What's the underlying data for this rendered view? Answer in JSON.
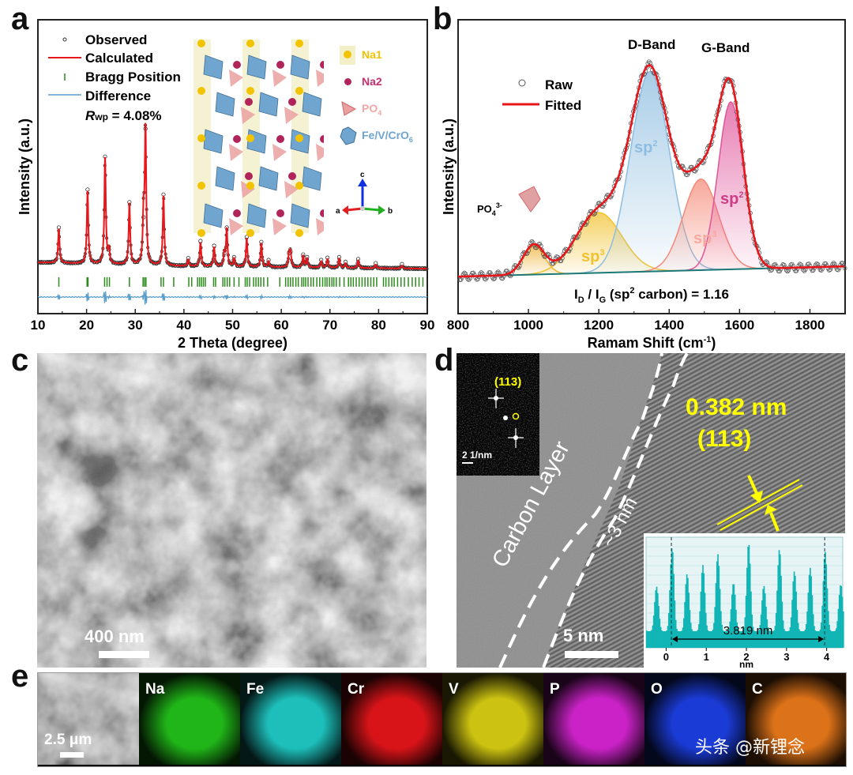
{
  "panels": {
    "a": "a",
    "b": "b",
    "c": "c",
    "d": "d",
    "e": "e"
  },
  "chart_data": [
    {
      "panel": "a",
      "type": "line",
      "title": "",
      "xlabel": "2 Theta (degree)",
      "ylabel": "Intensity (a.u.)",
      "xlim": [
        10,
        90
      ],
      "ylim": [
        0,
        155
      ],
      "xticks": [
        10,
        20,
        30,
        40,
        50,
        60,
        70,
        80,
        90
      ],
      "grid": false,
      "legend": {
        "placement": "top-left",
        "entries": [
          "Observed",
          "Calculated",
          "Bragg Position",
          "Difference"
        ]
      },
      "annotation_rwp": {
        "label": "R",
        "subscript": "wp",
        "value": " = 4.08%"
      },
      "baseline": {
        "start": 25.8,
        "end": 23.7
      },
      "peaks": [
        {
          "x": 14.3,
          "y": 44.6
        },
        {
          "x": 20.2,
          "y": 64.6
        },
        {
          "x": 23.8,
          "y": 82.0
        },
        {
          "x": 24.6,
          "y": 33.0
        },
        {
          "x": 28.8,
          "y": 58.0
        },
        {
          "x": 31.7,
          "y": 50.0
        },
        {
          "x": 32.1,
          "y": 96.7
        },
        {
          "x": 35.8,
          "y": 62.0
        },
        {
          "x": 40.9,
          "y": 28.5
        },
        {
          "x": 43.4,
          "y": 37.5
        },
        {
          "x": 46.2,
          "y": 35.0
        },
        {
          "x": 48.3,
          "y": 31.0
        },
        {
          "x": 48.8,
          "y": 44.6
        },
        {
          "x": 50.3,
          "y": 29.0
        },
        {
          "x": 52.9,
          "y": 39.6
        },
        {
          "x": 55.9,
          "y": 37.0
        },
        {
          "x": 57.4,
          "y": 27.5
        },
        {
          "x": 61.6,
          "y": 31.0
        },
        {
          "x": 61.9,
          "y": 32.0
        },
        {
          "x": 64.5,
          "y": 30.4
        },
        {
          "x": 65.3,
          "y": 29.0
        },
        {
          "x": 68.2,
          "y": 27.5
        },
        {
          "x": 69.5,
          "y": 28.7
        },
        {
          "x": 71.9,
          "y": 29.0
        },
        {
          "x": 73.2,
          "y": 26.5
        },
        {
          "x": 75.8,
          "y": 28.0
        },
        {
          "x": 79.4,
          "y": 25.8
        },
        {
          "x": 84.8,
          "y": 25.3
        }
      ],
      "bragg_level": 16.7,
      "bragg_positions": [
        14.3,
        20.1,
        20.3,
        23.7,
        24.2,
        24.7,
        28.8,
        31.6,
        31.9,
        32.2,
        35.3,
        35.8,
        37.9,
        41.0,
        41.6,
        42.8,
        43.2,
        43.6,
        44.0,
        44.4,
        46.1,
        46.5,
        48.0,
        48.4,
        48.9,
        49.4,
        50.3,
        51.3,
        52.6,
        53.0,
        53.5,
        54.3,
        54.8,
        55.3,
        55.8,
        56.4,
        57.2,
        59.7,
        60.9,
        61.4,
        61.9,
        62.4,
        63.0,
        63.5,
        64.2,
        64.6,
        65.0,
        65.5,
        66.1,
        66.6,
        67.3,
        67.9,
        68.5,
        69.0,
        69.4,
        69.9,
        70.4,
        70.8,
        71.3,
        72.0,
        72.9,
        73.8,
        74.3,
        74.8,
        75.4,
        76.0,
        76.6,
        77.2,
        77.8,
        78.4,
        79.0,
        79.6,
        81.0,
        81.5,
        82.1,
        82.7,
        83.2,
        83.9,
        84.6,
        85.3,
        86.1,
        86.9,
        87.6,
        88.3,
        89.1
      ],
      "difference_level": 8.75,
      "structure_legend": [
        {
          "label": "Na1",
          "color": "#f2c300"
        },
        {
          "label": "Na2",
          "color": "#b0245a"
        },
        {
          "label": "PO",
          "sub": "4",
          "color": "#f1a7a7"
        },
        {
          "label": "Fe/V/CrO",
          "sub": "6",
          "color": "#6fa5cf"
        }
      ],
      "axes_labels": {
        "a": "a",
        "b": "b",
        "c": "c"
      }
    },
    {
      "panel": "b",
      "type": "area",
      "title": "",
      "xlabel": "Ramam Shift (cm",
      "xlabel_sup": "-1",
      "xlabel_end": ")",
      "ylabel": "Intensity (a.u.)",
      "xlim": [
        800,
        1900
      ],
      "ylim": [
        0,
        1
      ],
      "xticks": [
        800,
        1000,
        1200,
        1400,
        1600,
        1800
      ],
      "grid": false,
      "legend": {
        "placement": "top-left",
        "entries": [
          "Raw",
          "Fitted"
        ]
      },
      "baseline": {
        "start": 0.126,
        "end": 0.161
      },
      "components": [
        {
          "name": "PO4",
          "center": 1015,
          "amplitude": 0.1,
          "sigma": 30,
          "color": "#f0b030"
        },
        {
          "name": "sp3",
          "center": 1200,
          "amplitude": 0.205,
          "sigma": 65,
          "color": "#f2c22e"
        },
        {
          "name": "sp2",
          "center": 1345,
          "amplitude": 0.68,
          "sigma": 55,
          "color": "#8dbde0"
        },
        {
          "name": "sp3",
          "center": 1490,
          "amplitude": 0.31,
          "sigma": 50,
          "color": "#f58a78"
        },
        {
          "name": "sp2",
          "center": 1575,
          "amplitude": 0.57,
          "sigma": 36,
          "color": "#e0559a"
        }
      ],
      "labels": {
        "d_band": "D-Band",
        "g_band": "G-Band",
        "po4": "PO",
        "po4_sub": "4",
        "po4_sup": "3-",
        "sp2": "sp",
        "sp3": "sp",
        "sup2": "2",
        "sup3": "3",
        "ratio_pre": "I",
        "ratio_d": "D",
        "ratio_mid": " / I",
        "ratio_g": "G",
        "ratio_text": " (sp",
        "ratio_sup": "2",
        "ratio_end": " carbon) = 1.16"
      }
    },
    {
      "panel": "d-inset",
      "type": "bar",
      "xlabel": "nm",
      "xlim": [
        -0.5,
        4.4
      ],
      "xticks": [
        0,
        1,
        2,
        3,
        4
      ],
      "measurement": "3.819 nm",
      "marker_range": [
        0.13,
        3.95
      ]
    }
  ],
  "panel_c": {
    "scale_bar": "400 nm"
  },
  "panel_d": {
    "fft_label": "(113)",
    "fft_scale": "2 1/nm",
    "carbon_layer": "Carbon Layer",
    "thickness": "~3 nm",
    "d_spacing": "0.382 nm",
    "plane": "(113)",
    "scale_bar": "5 nm"
  },
  "panel_e": {
    "scale_bar": "2.5 μm",
    "elements": [
      {
        "label": "Na",
        "color": "#22c01a"
      },
      {
        "label": "Fe",
        "color": "#1fc9c4"
      },
      {
        "label": "Cr",
        "color": "#e3151a"
      },
      {
        "label": "V",
        "color": "#d6cc12"
      },
      {
        "label": "P",
        "color": "#d424d0"
      },
      {
        "label": "O",
        "color": "#1c3ee0"
      },
      {
        "label": "C",
        "color": "#e8781a"
      }
    ],
    "watermark": "头条 @新锂念"
  }
}
